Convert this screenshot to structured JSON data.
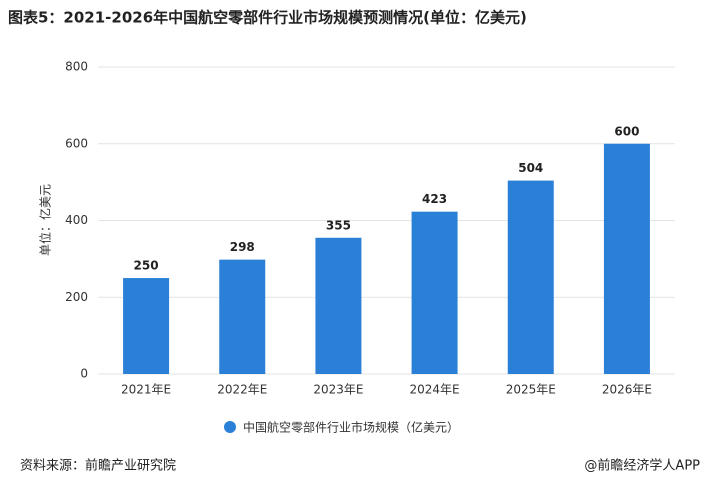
{
  "chart_data": {
    "type": "bar",
    "title": "图表5：2021-2026年中国航空零部件行业市场规模预测情况(单位：亿美元)",
    "y_label": "单位：亿美元",
    "categories": [
      "2021年E",
      "2022年E",
      "2023年E",
      "2024年E",
      "2025年E",
      "2026年E"
    ],
    "series": [
      {
        "name": "中国航空零部件行业市场规模（亿美元）",
        "color": "#2a7fd6",
        "values": [
          250,
          298,
          355,
          423,
          504,
          600
        ]
      }
    ],
    "ylim": [
      0,
      800
    ],
    "yticks": [
      0,
      200,
      400,
      600,
      800
    ],
    "grid": true
  },
  "source": "资料来源：前瞻产业研究院",
  "credit": "@前瞻经济学人APP"
}
